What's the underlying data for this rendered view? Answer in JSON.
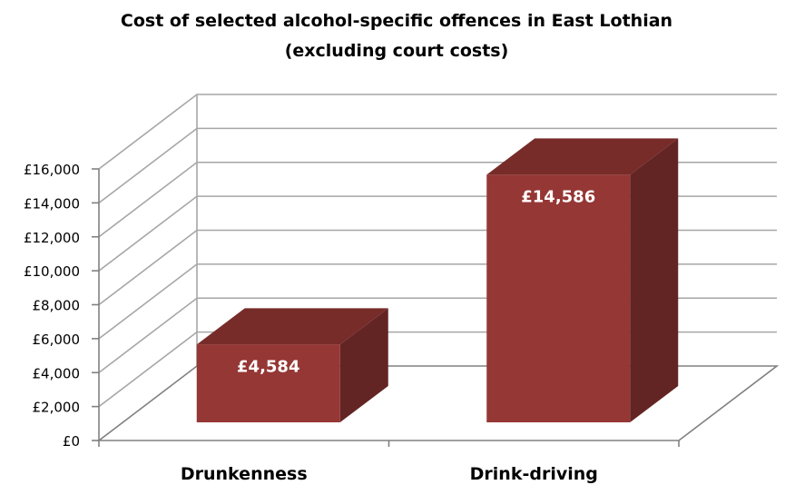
{
  "chart_data": {
    "type": "bar",
    "title": "Cost of selected alcohol-specific offences in East Lothian",
    "subtitle": "(excluding court costs)",
    "categories": [
      "Drunkenness",
      "Drink-driving"
    ],
    "values": [
      4584,
      14586
    ],
    "data_labels": [
      "£4,584",
      "£14,586"
    ],
    "ylim": [
      0,
      16000
    ],
    "y_ticks": [
      0,
      2000,
      4000,
      6000,
      8000,
      10000,
      12000,
      14000,
      16000
    ],
    "y_tick_labels": [
      "£0",
      "£2,000",
      "£4,000",
      "£6,000",
      "£8,000",
      "£10,000",
      "£12,000",
      "£14,000",
      "£16,000"
    ],
    "xlabel": "",
    "ylabel": "",
    "grid": true,
    "legend": "none",
    "style": "3d-column",
    "colors": {
      "bar_front": "#953735",
      "bar_top": "#772c2a",
      "bar_side": "#632523",
      "grid": "#a6a6a6",
      "axis": "#808080"
    }
  }
}
